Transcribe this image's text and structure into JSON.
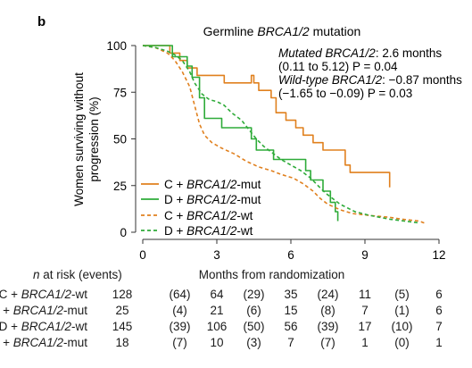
{
  "panel_label": "b",
  "chart_data": {
    "type": "line",
    "step": true,
    "title_prefix": "Germline ",
    "title_gene": "BRCA1/2",
    "title_suffix": " mutation",
    "xlabel": "Months from randomization",
    "ylabel_line1": "Women surviving without",
    "ylabel_line2": "progression (%)",
    "xlim": [
      0,
      12
    ],
    "ylim": [
      0,
      100
    ],
    "x_ticks": [
      0,
      3,
      6,
      9,
      12
    ],
    "y_ticks": [
      0,
      25,
      50,
      75,
      100
    ],
    "grid": false,
    "legend_position": "bottom-left",
    "annotations": [
      {
        "gene": "Mutated BRCA1/2",
        "line1_text": ": 2.6 months",
        "line2_text": "(0.11 to 5.12) P = 0.04"
      },
      {
        "gene": "Wild-type BRCA1/2",
        "line1_text": ": −0.87 months",
        "line2_text": "(−1.65 to −0.09) P = 0.03"
      }
    ],
    "series": [
      {
        "name": "C + BRCA1/2-mut",
        "legend_prefix": "C + ",
        "legend_gene": "BRCA1/2",
        "legend_suffix": "-mut",
        "color": "#e0801e",
        "dash": "solid",
        "points": [
          [
            0,
            100
          ],
          [
            1.1,
            100
          ],
          [
            1.1,
            96
          ],
          [
            1.5,
            96
          ],
          [
            1.5,
            92
          ],
          [
            1.8,
            92
          ],
          [
            1.8,
            88
          ],
          [
            2.2,
            88
          ],
          [
            2.2,
            84
          ],
          [
            3.3,
            84
          ],
          [
            3.3,
            80
          ],
          [
            4.4,
            80
          ],
          [
            4.4,
            84
          ],
          [
            4.5,
            84
          ],
          [
            4.5,
            80
          ],
          [
            4.7,
            80
          ],
          [
            4.7,
            76
          ],
          [
            5.2,
            76
          ],
          [
            5.2,
            72
          ],
          [
            5.4,
            72
          ],
          [
            5.4,
            64
          ],
          [
            5.8,
            64
          ],
          [
            5.8,
            60
          ],
          [
            6.2,
            60
          ],
          [
            6.2,
            56
          ],
          [
            6.5,
            56
          ],
          [
            6.5,
            52
          ],
          [
            6.9,
            52
          ],
          [
            6.9,
            48
          ],
          [
            7.3,
            48
          ],
          [
            7.3,
            44
          ],
          [
            8.2,
            44
          ],
          [
            8.2,
            36
          ],
          [
            8.4,
            36
          ],
          [
            8.4,
            32
          ],
          [
            10.0,
            32
          ],
          [
            10.0,
            24
          ]
        ]
      },
      {
        "name": "D + BRCA1/2-mut",
        "legend_prefix": "D + ",
        "legend_gene": "BRCA1/2",
        "legend_suffix": "-mut",
        "color": "#2eab39",
        "dash": "solid",
        "points": [
          [
            0,
            100
          ],
          [
            1.2,
            100
          ],
          [
            1.2,
            94
          ],
          [
            1.8,
            94
          ],
          [
            1.8,
            89
          ],
          [
            2.0,
            89
          ],
          [
            2.0,
            83
          ],
          [
            2.3,
            83
          ],
          [
            2.3,
            72
          ],
          [
            2.5,
            72
          ],
          [
            2.5,
            61
          ],
          [
            3.2,
            61
          ],
          [
            3.2,
            56
          ],
          [
            4.4,
            56
          ],
          [
            4.4,
            50
          ],
          [
            4.6,
            50
          ],
          [
            4.6,
            44
          ],
          [
            5.3,
            44
          ],
          [
            5.3,
            39
          ],
          [
            6.6,
            39
          ],
          [
            6.6,
            33
          ],
          [
            6.8,
            33
          ],
          [
            6.8,
            28
          ],
          [
            7.3,
            28
          ],
          [
            7.3,
            22
          ],
          [
            7.6,
            22
          ],
          [
            7.6,
            16
          ],
          [
            7.8,
            16
          ],
          [
            7.8,
            11
          ],
          [
            7.9,
            11
          ],
          [
            7.9,
            6
          ]
        ]
      },
      {
        "name": "C + BRCA1/2-wt",
        "legend_prefix": "C + ",
        "legend_gene": "BRCA1/2",
        "legend_suffix": "-wt",
        "color": "#e0801e",
        "dash": "dashed",
        "points": [
          [
            0,
            100
          ],
          [
            0.5,
            99
          ],
          [
            1.0,
            96
          ],
          [
            1.3,
            92
          ],
          [
            1.6,
            86
          ],
          [
            1.9,
            78
          ],
          [
            2.1,
            68
          ],
          [
            2.3,
            58
          ],
          [
            2.5,
            52
          ],
          [
            2.8,
            48
          ],
          [
            3.2,
            45
          ],
          [
            3.7,
            42
          ],
          [
            4.2,
            38
          ],
          [
            4.7,
            35
          ],
          [
            5.2,
            33
          ],
          [
            5.6,
            31
          ],
          [
            6.1,
            29
          ],
          [
            6.5,
            26
          ],
          [
            6.9,
            22
          ],
          [
            7.2,
            18
          ],
          [
            7.5,
            15
          ],
          [
            8.0,
            12
          ],
          [
            8.5,
            10
          ],
          [
            9.2,
            9
          ],
          [
            10.0,
            8
          ],
          [
            10.5,
            7
          ],
          [
            11.2,
            6
          ],
          [
            11.4,
            5
          ]
        ]
      },
      {
        "name": "D + BRCA1/2-wt",
        "legend_prefix": "D + ",
        "legend_gene": "BRCA1/2",
        "legend_suffix": "-wt",
        "color": "#2eab39",
        "dash": "dashed",
        "points": [
          [
            0,
            100
          ],
          [
            0.5,
            99
          ],
          [
            1.0,
            97
          ],
          [
            1.3,
            95
          ],
          [
            1.6,
            92
          ],
          [
            1.9,
            86
          ],
          [
            2.1,
            80
          ],
          [
            2.4,
            74
          ],
          [
            2.7,
            71
          ],
          [
            3.0,
            70
          ],
          [
            3.3,
            68
          ],
          [
            3.6,
            64
          ],
          [
            4.0,
            60
          ],
          [
            4.3,
            55
          ],
          [
            4.6,
            50
          ],
          [
            4.9,
            46
          ],
          [
            5.2,
            43
          ],
          [
            5.6,
            39
          ],
          [
            6.0,
            36
          ],
          [
            6.4,
            33
          ],
          [
            6.8,
            29
          ],
          [
            7.1,
            25
          ],
          [
            7.4,
            21
          ],
          [
            7.7,
            18
          ],
          [
            8.0,
            15
          ],
          [
            8.6,
            11
          ],
          [
            9.2,
            9
          ],
          [
            10.0,
            7
          ],
          [
            10.6,
            6
          ],
          [
            11.2,
            5
          ]
        ]
      }
    ]
  },
  "risk_table": {
    "title_prefix": "n",
    "title_suffix": " at risk (events)",
    "x_title": "Months from randomization",
    "rows": [
      {
        "prefix": "C + ",
        "gene": "BRCA1/2",
        "suffix": "-wt",
        "cells": [
          "128",
          "(64)",
          "64",
          "(29)",
          "35",
          "(24)",
          "11",
          "(5)",
          "6"
        ]
      },
      {
        "prefix": "C + ",
        "gene": "BRCA1/2",
        "suffix": "-mut",
        "cells": [
          "25",
          "(4)",
          "21",
          "(6)",
          "15",
          "(8)",
          "7",
          "(1)",
          "6"
        ]
      },
      {
        "prefix": "D + ",
        "gene": "BRCA1/2",
        "suffix": "-wt",
        "cells": [
          "145",
          "(39)",
          "106",
          "(50)",
          "56",
          "(39)",
          "17",
          "(10)",
          "7"
        ]
      },
      {
        "prefix": "D + ",
        "gene": "BRCA1/2",
        "suffix": "-mut",
        "cells": [
          "18",
          "(7)",
          "10",
          "(3)",
          "7",
          "(7)",
          "1",
          "(0)",
          "1"
        ]
      }
    ]
  }
}
